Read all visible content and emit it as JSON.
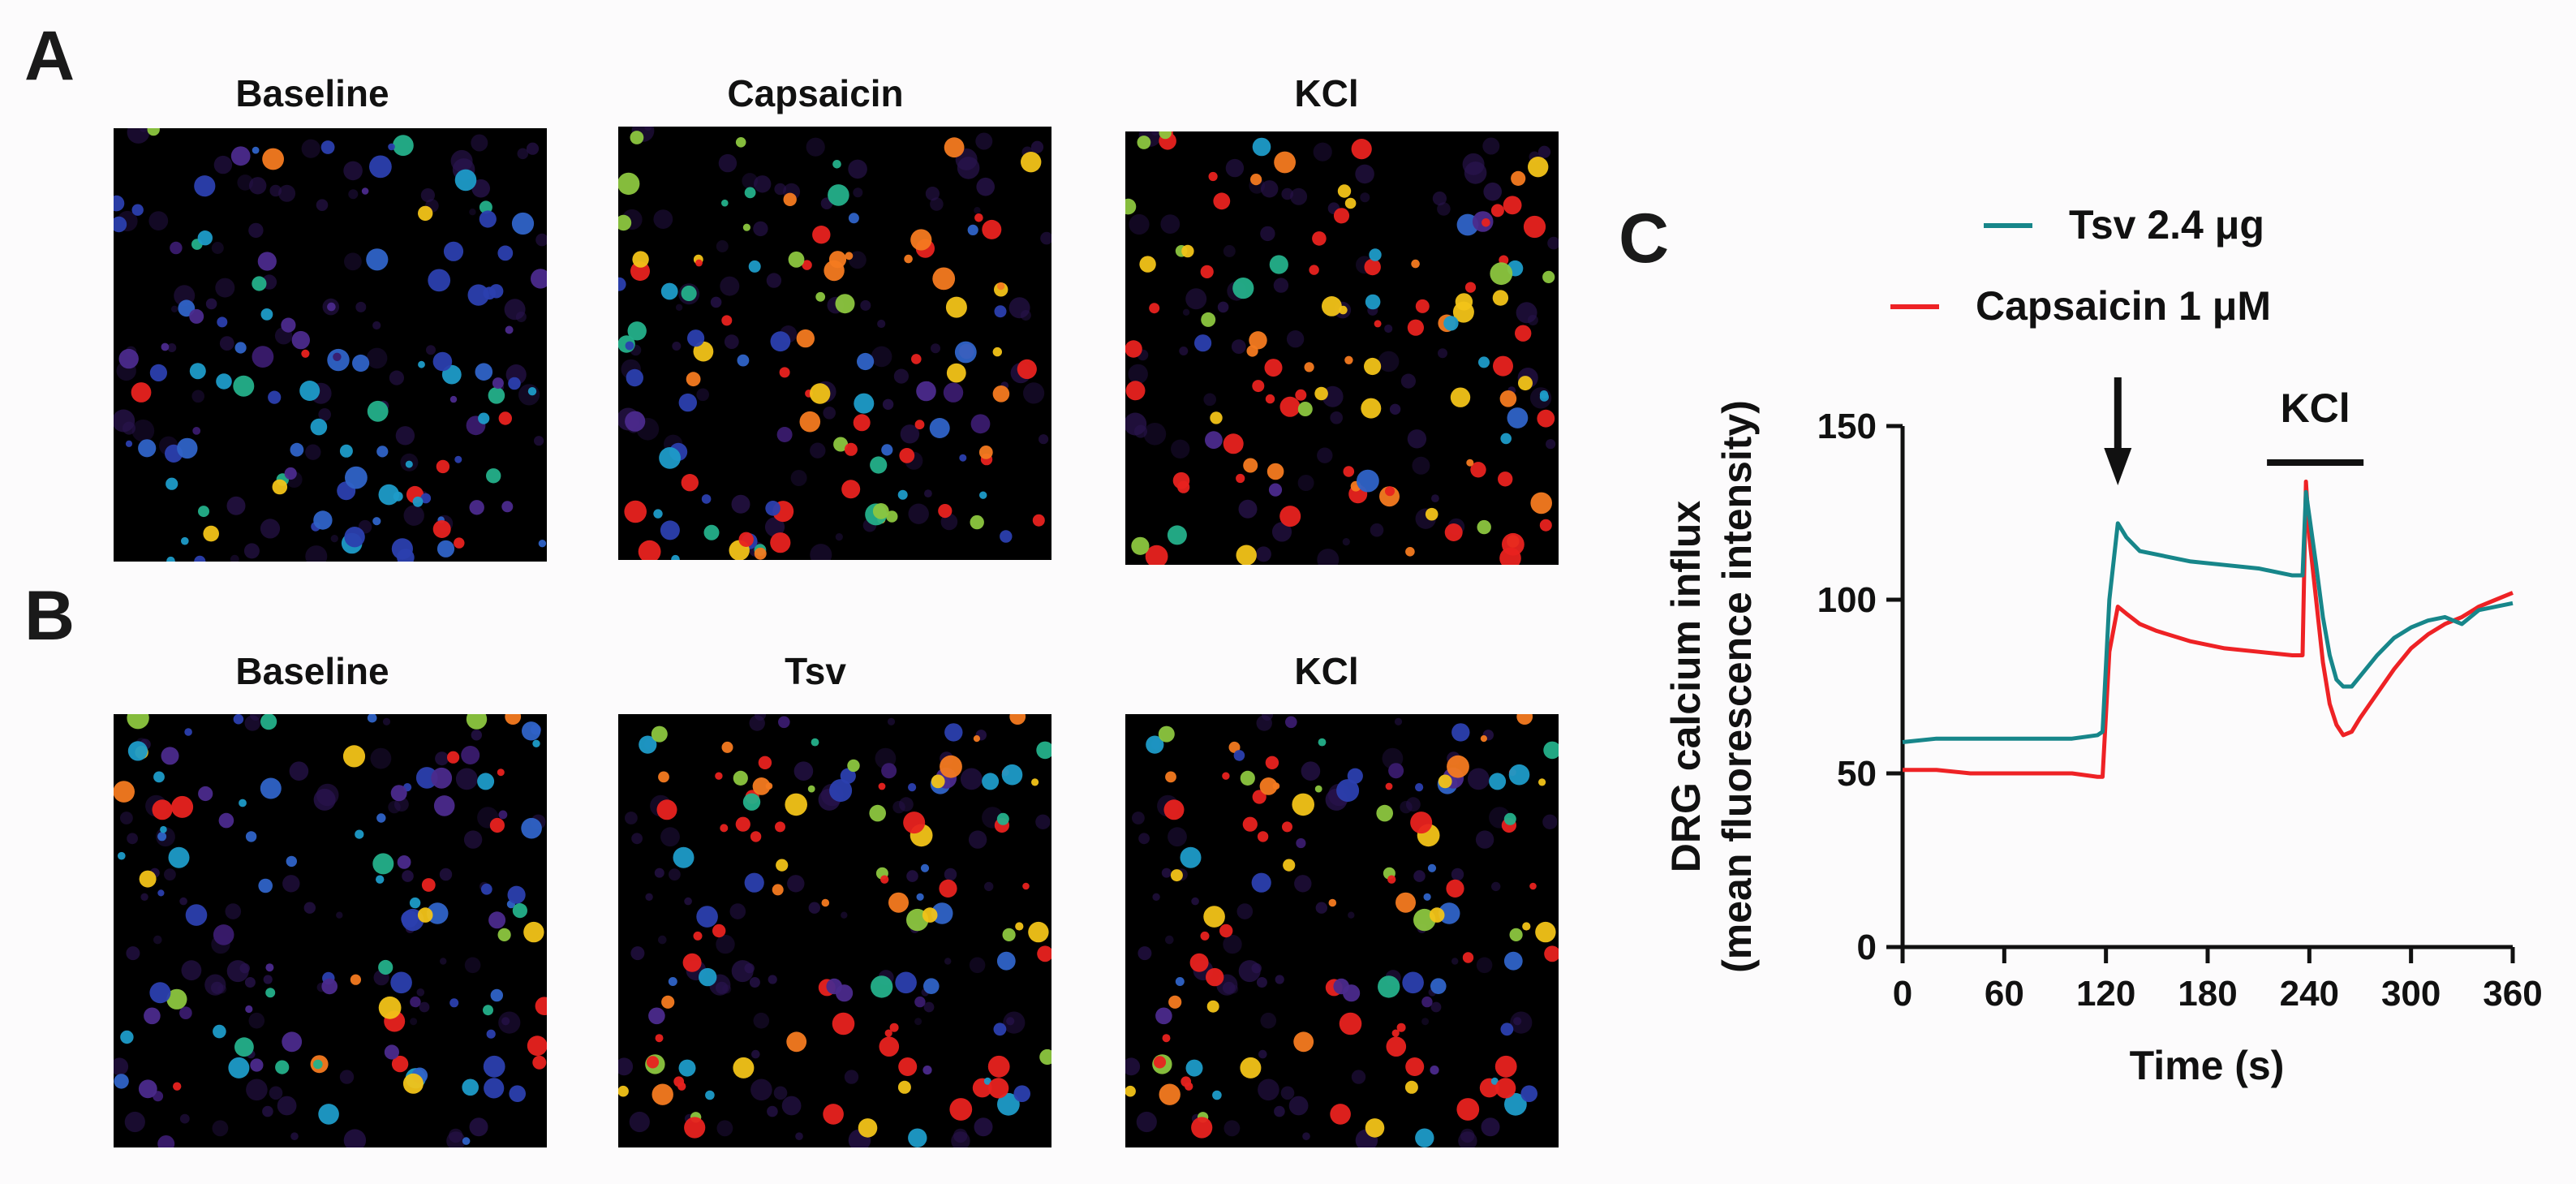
{
  "panels": {
    "A": {
      "letter": "A",
      "titles": [
        "Baseline",
        "Capsaicin",
        "KCl"
      ]
    },
    "B": {
      "letter": "B",
      "titles": [
        "Baseline",
        "Tsv",
        "KCl"
      ]
    },
    "C": {
      "letter": "C"
    }
  },
  "colors": {
    "tsv": "#17868a",
    "capsaicin": "#ee2225",
    "axis": "#111111"
  },
  "chart_data": {
    "type": "line",
    "title": "",
    "xlabel": "Time (s)",
    "ylabel_line1": "DRG calcium influx",
    "ylabel_line2": "(mean fluorescence intensity)",
    "xlim": [
      0,
      360
    ],
    "ylim": [
      0,
      150
    ],
    "xticks": [
      0,
      60,
      120,
      180,
      240,
      300,
      360
    ],
    "yticks": [
      0,
      50,
      100,
      150
    ],
    "annotations": {
      "arrow_at_x": 127,
      "kcl_label": "KCl",
      "kcl_bar_range": [
        215,
        272
      ]
    },
    "series": [
      {
        "name": "Tsv 2.4 μg",
        "color": "#17868a",
        "x": [
          0,
          20,
          40,
          60,
          80,
          100,
          115,
          118,
          122,
          127,
          132,
          140,
          150,
          170,
          190,
          210,
          230,
          236,
          238,
          240,
          244,
          248,
          252,
          256,
          260,
          265,
          270,
          280,
          290,
          300,
          310,
          320,
          330,
          340,
          350,
          360
        ],
        "y": [
          59,
          60,
          60,
          60,
          60,
          60,
          61,
          62,
          100,
          122,
          118,
          114,
          113,
          111,
          110,
          109,
          107,
          107,
          131,
          124,
          110,
          95,
          84,
          77,
          75,
          75,
          78,
          84,
          89,
          92,
          94,
          95,
          93,
          97,
          98,
          99
        ]
      },
      {
        "name": "Capsaicin 1 μM",
        "color": "#ee2225",
        "x": [
          0,
          20,
          40,
          60,
          80,
          100,
          115,
          118,
          122,
          127,
          132,
          140,
          150,
          170,
          190,
          210,
          230,
          236,
          238,
          240,
          244,
          248,
          252,
          256,
          260,
          265,
          270,
          280,
          290,
          300,
          310,
          320,
          330,
          340,
          350,
          360
        ],
        "y": [
          51,
          51,
          50,
          50,
          50,
          50,
          49,
          49,
          85,
          98,
          96,
          93,
          91,
          88,
          86,
          85,
          84,
          84,
          134,
          118,
          100,
          82,
          70,
          64,
          61,
          62,
          66,
          73,
          80,
          86,
          90,
          93,
          95,
          98,
          100,
          102
        ]
      }
    ]
  }
}
